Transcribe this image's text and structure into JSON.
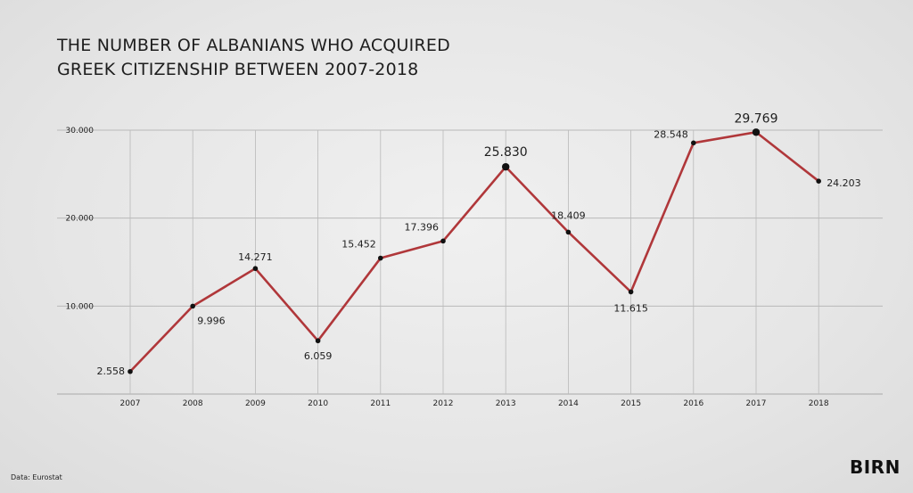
{
  "title_line1": "THE NUMBER OF ALBANIANS WHO ACQUIRED",
  "title_line2": "GREEK CITIZENSHIP BETWEEN 2007-2018",
  "source": "Data: Eurostat",
  "logo": "BIRN",
  "colors": {
    "line": "#b0373a",
    "marker": "#111111",
    "grid": "#b9b9b9",
    "text": "#1e1e1e"
  },
  "chart_data": {
    "type": "line",
    "title": "THE NUMBER OF ALBANIANS WHO ACQUIRED GREEK CITIZENSHIP BETWEEN 2007-2018",
    "xlabel": "",
    "ylabel": "",
    "categories": [
      "2007",
      "2008",
      "2009",
      "2010",
      "2011",
      "2012",
      "2013",
      "2014",
      "2015",
      "2016",
      "2017",
      "2018"
    ],
    "values": [
      2558,
      9996,
      14271,
      6059,
      15452,
      17396,
      25830,
      18409,
      11615,
      28548,
      29769,
      24203
    ],
    "data_labels": [
      "2.558",
      "9.996",
      "14.271",
      "6.059",
      "15.452",
      "17.396",
      "25.830",
      "18.409",
      "11.615",
      "28.548",
      "29.769",
      "24.203"
    ],
    "highlighted": [
      "2013",
      "2017"
    ],
    "y_ticks": [
      10000,
      20000,
      30000
    ],
    "y_tick_labels": [
      "10.000",
      "20.000",
      "30.000"
    ],
    "ylim": [
      0,
      30000
    ],
    "grid": true,
    "legend": "none"
  }
}
